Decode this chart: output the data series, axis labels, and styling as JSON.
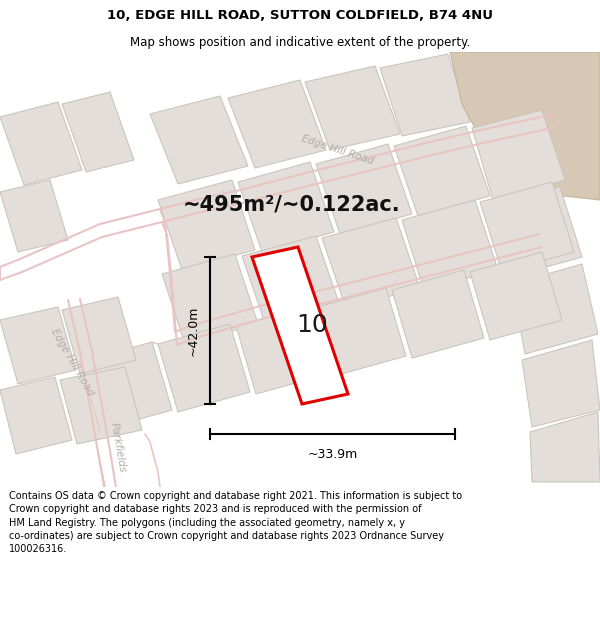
{
  "title_line1": "10, EDGE HILL ROAD, SUTTON COLDFIELD, B74 4NU",
  "title_line2": "Map shows position and indicative extent of the property.",
  "area_text": "~495m²/~0.122ac.",
  "number_label": "10",
  "dim_height": "~42.0m",
  "dim_width": "~33.9m",
  "footer_text": "Contains OS data © Crown copyright and database right 2021. This information is subject to\nCrown copyright and database rights 2023 and is reproduced with the permission of\nHM Land Registry. The polygons (including the associated geometry, namely x, y\nco-ordinates) are subject to Crown copyright and database rights 2023 Ordnance Survey\n100026316.",
  "map_bg": "#f0ece8",
  "block_fc": "#e3deda",
  "block_ec": "#ccc5be",
  "road_color": "#e8c4c4",
  "property_stroke": "#e00000",
  "property_fill": "#ffffff",
  "tan_color": "#d6c8b4",
  "road_label_color": "#b0aca8",
  "title_bold": true,
  "title_fontsize": 9.5,
  "subtitle_fontsize": 8.5,
  "footer_fontsize": 7.0,
  "area_fontsize": 15,
  "number_fontsize": 18,
  "dim_fontsize": 9
}
